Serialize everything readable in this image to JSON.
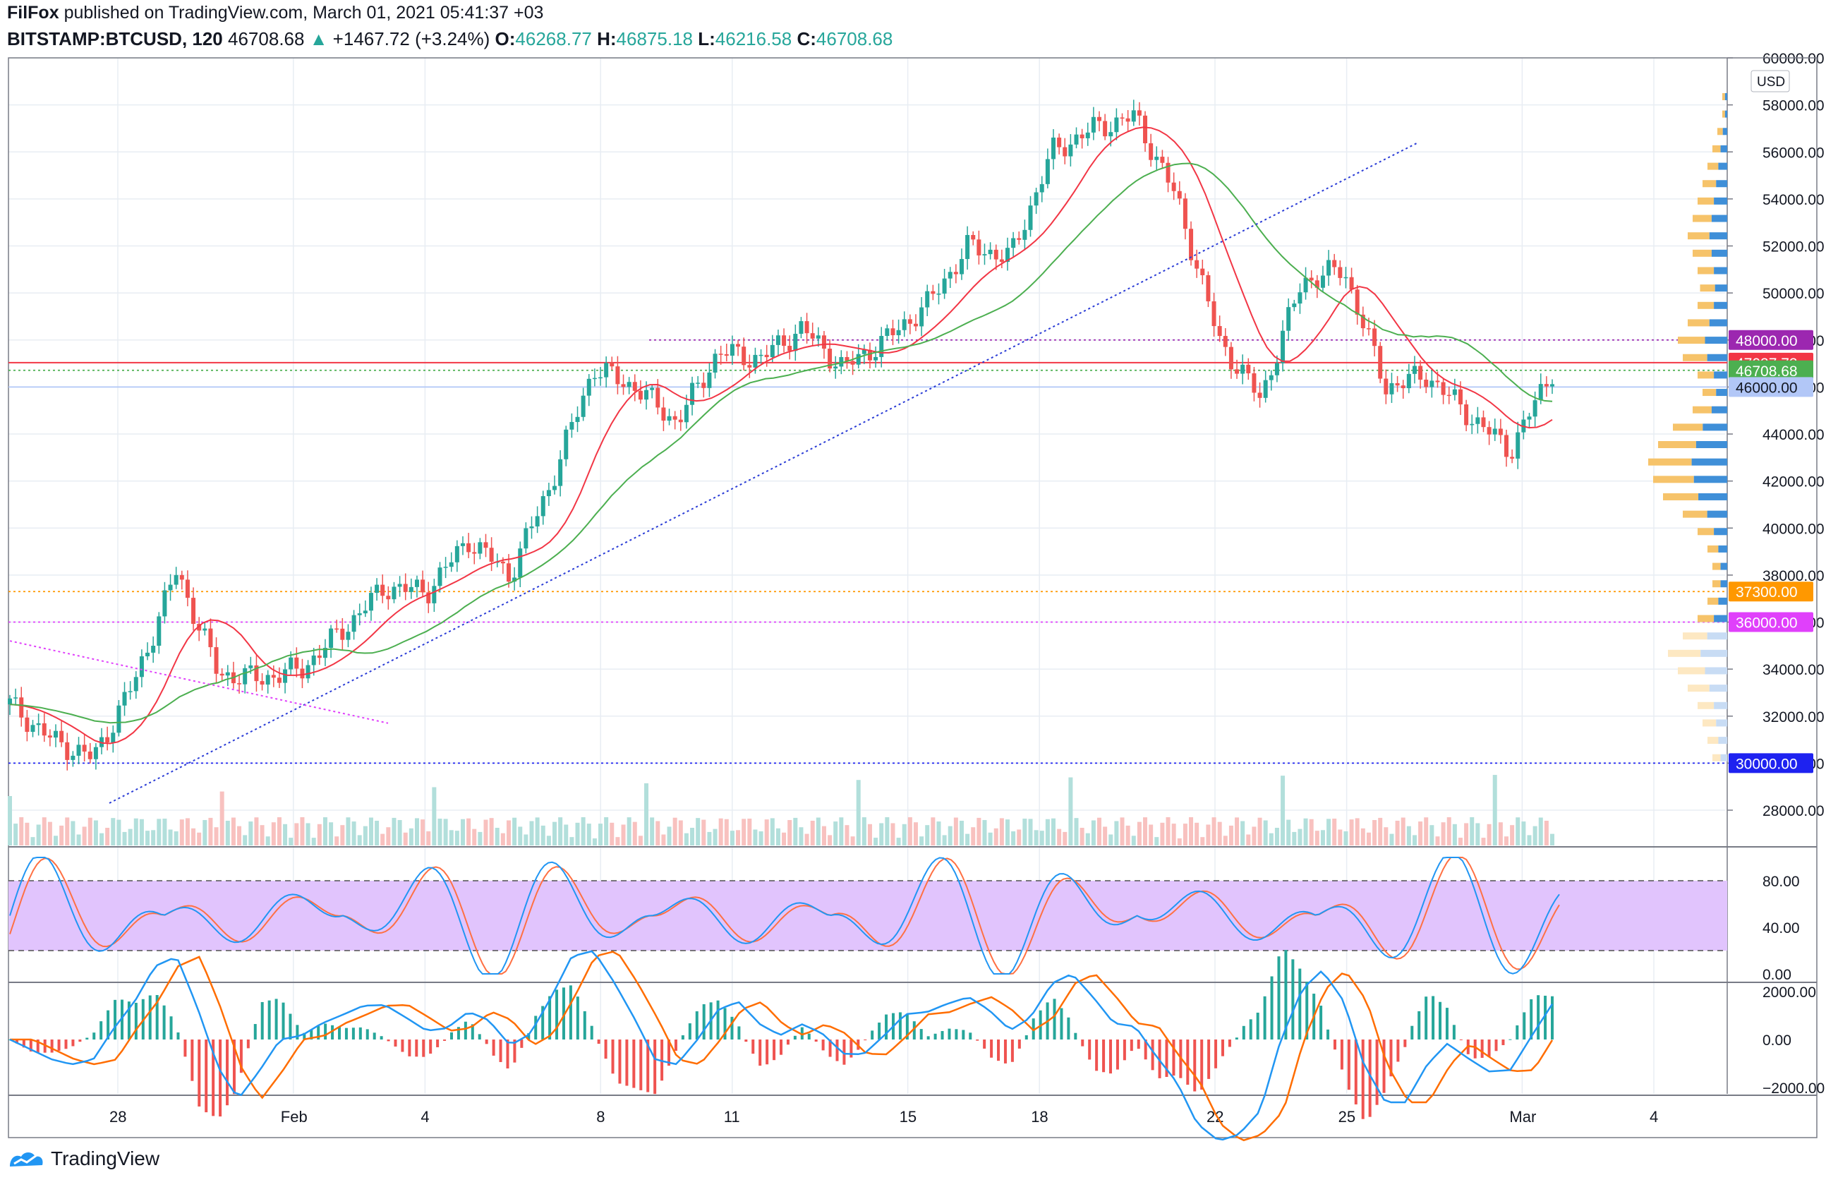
{
  "header": {
    "author": "FilFox",
    "published": "published on TradingView.com, March 01, 2021 05:41:37 +03",
    "symbol": "BITSTAMP:BTCUSD, 120",
    "last": "46708.68",
    "up_arrow": "▲",
    "change": "+1467.72 (+3.24%)",
    "o_label": "O:",
    "o": "46268.77",
    "h_label": "H:",
    "h": "46875.18",
    "l_label": "L:",
    "l": "46216.58",
    "c_label": "C:",
    "c": "46708.68"
  },
  "footer": {
    "brand": "TradingView",
    "logo_icon": "tradingview-logo-icon"
  },
  "colors": {
    "up": "#26a69a",
    "down": "#ef5350",
    "ma_green": "#4caf50",
    "ma_red": "#f23645",
    "stoch_k": "#2196f3",
    "stoch_d": "#ff7043",
    "stoch_band": "#e1c4fd",
    "macd": "#2196f3",
    "signal": "#ff6d00",
    "trend": "#2a3cd6",
    "fib_magenta": "#e040fb"
  },
  "chart_data": {
    "type": "candlestick",
    "currency": "USD",
    "price_axis": {
      "ticks": [
        "60000.00",
        "58000.00",
        "56000.00",
        "54000.00",
        "52000.00",
        "50000.00",
        "48000.00",
        "46000.00",
        "44000.00",
        "42000.00",
        "40000.00",
        "38000.00",
        "36000.00",
        "34000.00",
        "32000.00",
        "30000.00",
        "28000.00"
      ],
      "range": [
        26500,
        60000
      ]
    },
    "time_axis": {
      "labels": [
        "28",
        "Feb",
        "4",
        "8",
        "11",
        "15",
        "18",
        "22",
        "25",
        "Mar",
        "4"
      ]
    },
    "price_labels": [
      {
        "value": "48000.00",
        "color": "#9c27b0"
      },
      {
        "value": "47037.73",
        "color": "#f23645"
      },
      {
        "value": "46708.68",
        "color": "#4caf50"
      },
      {
        "value": "46000.00",
        "color": "#b2c7f7"
      },
      {
        "value": "37300.00",
        "color": "#ff9800"
      },
      {
        "value": "36000.00",
        "color": "#e040fb"
      },
      {
        "value": "30000.00",
        "color": "#1e22f0"
      }
    ],
    "horizontal_levels": [
      48000,
      47037.73,
      46708.68,
      46000,
      37300,
      36000,
      30000
    ],
    "close_path": [
      [
        "Jan 26",
        32500
      ],
      [
        "Jan 27",
        31000
      ],
      [
        "Jan 28",
        30200
      ],
      [
        "Jan 29",
        33500
      ],
      [
        "Jan 30",
        38200
      ],
      [
        "Jan 31",
        33800
      ],
      [
        "Feb 1",
        33600
      ],
      [
        "Feb 2",
        34000
      ],
      [
        "Feb 3",
        35700
      ],
      [
        "Feb 4",
        37500
      ],
      [
        "Feb 5",
        37300
      ],
      [
        "Feb 6",
        39500
      ],
      [
        "Feb 7",
        38000
      ],
      [
        "Feb 8",
        42000
      ],
      [
        "Feb 9",
        46800
      ],
      [
        "Feb 10",
        46000
      ],
      [
        "Feb 11",
        44500
      ],
      [
        "Feb 12",
        47500
      ],
      [
        "Feb 13",
        47200
      ],
      [
        "Feb 14",
        48500
      ],
      [
        "Feb 15",
        46800
      ],
      [
        "Feb 16",
        48000
      ],
      [
        "Feb 17",
        49500
      ],
      [
        "Feb 18",
        52000
      ],
      [
        "Feb 19",
        51500
      ],
      [
        "Feb 20",
        56000
      ],
      [
        "Feb 21",
        57000
      ],
      [
        "Feb 22",
        57500
      ],
      [
        "Feb 22b",
        54000
      ],
      [
        "Feb 23",
        48000
      ],
      [
        "Feb 23b",
        45500
      ],
      [
        "Feb 24",
        50500
      ],
      [
        "Feb 25",
        51000
      ],
      [
        "Feb 26",
        46000
      ],
      [
        "Feb 27",
        46500
      ],
      [
        "Feb 28",
        44800
      ],
      [
        "Mar 1a",
        43300
      ],
      [
        "Mar 1",
        46708.68
      ]
    ],
    "stoch_axis": {
      "ticks": [
        "80.00",
        "40.00",
        "0.00"
      ],
      "band": [
        20,
        80
      ]
    },
    "macd_axis": {
      "ticks": [
        "2000.00",
        "0.00",
        "−2000.00"
      ]
    }
  }
}
